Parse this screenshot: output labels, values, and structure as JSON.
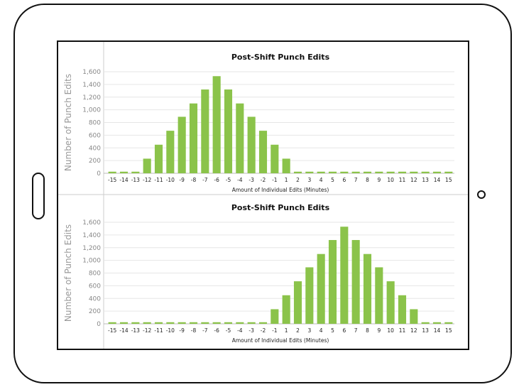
{
  "device": {
    "bezel_color": "#111111",
    "panel_border_color": "#111111",
    "home_button": "pill-button",
    "camera": "camera-dot"
  },
  "chart_data": [
    {
      "type": "bar",
      "title": "Post-Shift Punch Edits",
      "xlabel": "Amount of Individual Edits (Minutes)",
      "ylabel": "Number of Punch Edits",
      "categories": [
        "-15",
        "-14",
        "-13",
        "-12",
        "-11",
        "-10",
        "-9",
        "-8",
        "-7",
        "-6",
        "-5",
        "-4",
        "-3",
        "-2",
        "-1",
        "1",
        "2",
        "3",
        "4",
        "5",
        "6",
        "7",
        "8",
        "9",
        "10",
        "11",
        "12",
        "13",
        "14",
        "15"
      ],
      "values": [
        25,
        25,
        25,
        230,
        450,
        670,
        890,
        1100,
        1320,
        1530,
        1320,
        1100,
        890,
        670,
        450,
        230,
        25,
        25,
        25,
        25,
        25,
        25,
        25,
        25,
        25,
        25,
        25,
        25,
        25,
        25
      ],
      "ylim": [
        0,
        1600
      ],
      "yticks": [
        "0",
        "200",
        "400",
        "600",
        "800",
        "1,000",
        "1,200",
        "1,400",
        "1,600"
      ],
      "grid": true,
      "bar_color": "#8bc34a"
    },
    {
      "type": "bar",
      "title": "Post-Shift Punch Edits",
      "xlabel": "Amount of Individual Edits (Minutes)",
      "ylabel": "Number of Punch Edits",
      "categories": [
        "-15",
        "-14",
        "-13",
        "-12",
        "-11",
        "-10",
        "-9",
        "-8",
        "-7",
        "-6",
        "-5",
        "-4",
        "-3",
        "-2",
        "-1",
        "1",
        "2",
        "3",
        "4",
        "5",
        "6",
        "7",
        "8",
        "9",
        "10",
        "11",
        "12",
        "13",
        "14",
        "15"
      ],
      "values": [
        25,
        25,
        25,
        25,
        25,
        25,
        25,
        25,
        25,
        25,
        25,
        25,
        25,
        25,
        230,
        450,
        670,
        890,
        1100,
        1320,
        1530,
        1320,
        1100,
        890,
        670,
        450,
        230,
        25,
        25,
        25
      ],
      "ylim": [
        0,
        1600
      ],
      "yticks": [
        "0",
        "200",
        "400",
        "600",
        "800",
        "1,000",
        "1,200",
        "1,400",
        "1,600"
      ],
      "grid": true,
      "bar_color": "#8bc34a"
    }
  ]
}
